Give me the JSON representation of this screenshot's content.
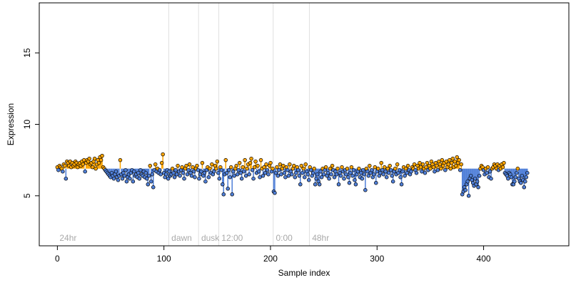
{
  "chart_data": {
    "type": "scatter",
    "xlabel": "Sample index",
    "ylabel": "Expression",
    "xlim": [
      -17,
      480
    ],
    "ylim": [
      1.5,
      18.5
    ],
    "xticks": [
      0,
      100,
      200,
      300,
      400
    ],
    "yticks": [
      5,
      10,
      15
    ],
    "grid": false,
    "segments": [
      {
        "label": "24hr",
        "start": 0
      },
      {
        "label": "dawn",
        "start": 105
      },
      {
        "label": "dusk",
        "start": 133
      },
      {
        "label": "12:00",
        "start": 152
      },
      {
        "label": "0:00",
        "start": 203
      },
      {
        "label": "48hr",
        "start": 237
      }
    ],
    "baseline": 6.9,
    "colors": {
      "above": "#ffa500",
      "below": "#4f7fd8",
      "point_stroke": "#000000",
      "separator": "#e0e0e0",
      "segment_label": "#a9a9a9"
    },
    "points": [
      7.0,
      6.8,
      7.1,
      7.0,
      6.9,
      6.7,
      7.2,
      7.1,
      6.2,
      7.4,
      7.3,
      7.1,
      7.4,
      7.0,
      7.3,
      7.1,
      7.2,
      7.4,
      7.3,
      7.0,
      7.2,
      7.3,
      7.1,
      7.4,
      7.2,
      7.5,
      6.7,
      7.3,
      7.5,
      7.4,
      7.6,
      7.2,
      7.3,
      7.0,
      7.4,
      7.6,
      6.9,
      7.2,
      7.5,
      7.3,
      7.7,
      7.5,
      7.8,
      7.0,
      6.9,
      6.8,
      6.7,
      6.6,
      6.5,
      6.4,
      6.3,
      6.6,
      6.4,
      6.2,
      6.5,
      6.7,
      6.3,
      6.1,
      6.4,
      7.5,
      6.5,
      6.2,
      6.6,
      6.4,
      6.8,
      6.0,
      6.3,
      6.5,
      6.2,
      6.6,
      6.8,
      6.0,
      6.7,
      6.4,
      6.5,
      6.3,
      6.6,
      6.2,
      6.8,
      6.5,
      6.4,
      6.7,
      6.3,
      6.6,
      6.2,
      5.8,
      6.4,
      7.1,
      6.0,
      6.5,
      5.6,
      6.8,
      7.2,
      6.7,
      6.9,
      6.6,
      6.8,
      6.5,
      7.3,
      7.9,
      6.6,
      6.3,
      6.5,
      6.8,
      6.2,
      6.7,
      6.4,
      6.5,
      6.9,
      6.6,
      6.3,
      6.8,
      6.5,
      7.1,
      6.7,
      6.4,
      6.8,
      7.0,
      6.6,
      6.2,
      6.9,
      7.1,
      6.5,
      6.8,
      7.2,
      6.6,
      6.4,
      7.0,
      6.7,
      6.3,
      6.9,
      7.1,
      6.8,
      6.2,
      6.5,
      6.7,
      7.3,
      6.4,
      6.6,
      6.0,
      6.8,
      7.0,
      6.3,
      6.9,
      6.6,
      7.2,
      6.5,
      6.7,
      7.1,
      6.9,
      7.4,
      6.6,
      6.2,
      7.0,
      6.8,
      5.8,
      5.1,
      6.5,
      7.5,
      6.6,
      5.5,
      6.8,
      6.3,
      7.0,
      5.1,
      6.7,
      6.4,
      6.9,
      7.1,
      6.5,
      6.8,
      7.3,
      6.6,
      6.2,
      7.0,
      6.7,
      7.5,
      6.4,
      6.9,
      7.2,
      6.5,
      7.3,
      7.6,
      6.8,
      6.2,
      7.0,
      7.4,
      6.6,
      7.1,
      6.7,
      6.3,
      7.5,
      6.9,
      6.4,
      7.0,
      6.6,
      7.2,
      6.8,
      6.5,
      7.1,
      7.3,
      6.7,
      6.9,
      5.3,
      5.2,
      6.6,
      7.0,
      6.4,
      6.8,
      7.2,
      6.5,
      6.9,
      7.1,
      6.6,
      6.3,
      7.0,
      6.8,
      6.4,
      7.2,
      6.7,
      6.5,
      6.9,
      7.1,
      6.3,
      6.6,
      7.0,
      6.8,
      6.4,
      5.8,
      7.1,
      6.6,
      6.9,
      6.3,
      7.2,
      6.7,
      6.5,
      6.1,
      7.0,
      6.8,
      6.4,
      6.6,
      6.9,
      5.8,
      6.2,
      6.5,
      6.0,
      5.8,
      6.7,
      6.3,
      6.9,
      6.5,
      6.8,
      7.0,
      6.4,
      6.6,
      6.2,
      6.9,
      6.5,
      7.1,
      6.8,
      6.3,
      6.7,
      6.5,
      6.9,
      5.8,
      6.6,
      6.4,
      7.0,
      6.7,
      6.2,
      6.8,
      6.5,
      6.9,
      6.3,
      5.9,
      6.6,
      7.0,
      6.4,
      6.8,
      6.1,
      5.8,
      6.5,
      6.7,
      6.9,
      6.3,
      6.6,
      6.2,
      6.8,
      6.5,
      5.4,
      6.9,
      6.7,
      6.4,
      7.1,
      6.6,
      6.8,
      6.3,
      6.5,
      7.0,
      5.9,
      6.7,
      6.9,
      6.4,
      6.6,
      7.3,
      6.8,
      6.5,
      7.0,
      6.7,
      6.3,
      6.9,
      6.6,
      7.1,
      6.8,
      6.4,
      6.0,
      6.7,
      6.9,
      6.5,
      7.2,
      6.6,
      6.8,
      6.3,
      5.8,
      6.7,
      7.0,
      6.4,
      6.9,
      6.6,
      7.1,
      6.8,
      6.5,
      6.7,
      7.0,
      6.9,
      7.2,
      6.8,
      6.6,
      7.1,
      6.9,
      7.3,
      7.0,
      6.7,
      7.2,
      6.9,
      6.6,
      7.0,
      7.3,
      6.8,
      7.1,
      6.9,
      7.4,
      7.2,
      7.0,
      6.7,
      7.3,
      7.1,
      6.8,
      7.4,
      7.2,
      6.9,
      7.5,
      7.1,
      7.3,
      6.8,
      7.4,
      7.0,
      7.2,
      7.5,
      6.9,
      7.3,
      7.6,
      7.0,
      7.4,
      7.1,
      7.7,
      7.3,
      7.5,
      6.8,
      7.2,
      5.1,
      5.3,
      5.6,
      5.4,
      5.8,
      6.0,
      5.0,
      6.2,
      6.4,
      6.1,
      5.9,
      5.7,
      6.2,
      5.8,
      6.0,
      5.6,
      6.4,
      6.9,
      7.1,
      7.0,
      6.8,
      6.5,
      6.9,
      6.6,
      7.0,
      6.3,
      6.7,
      6.2,
      6.9,
      7.0,
      7.2,
      7.1,
      6.9,
      7.2,
      6.8,
      7.1,
      6.9,
      7.2,
      7.0,
      7.3,
      6.6,
      6.5,
      6.4,
      6.2,
      6.6,
      6.5,
      6.3,
      5.8,
      5.8,
      6.0,
      6.3,
      6.6,
      6.9,
      6.2,
      6.0,
      5.9,
      6.4,
      6.1,
      5.6,
      6.0,
      6.3,
      6.6
    ]
  }
}
